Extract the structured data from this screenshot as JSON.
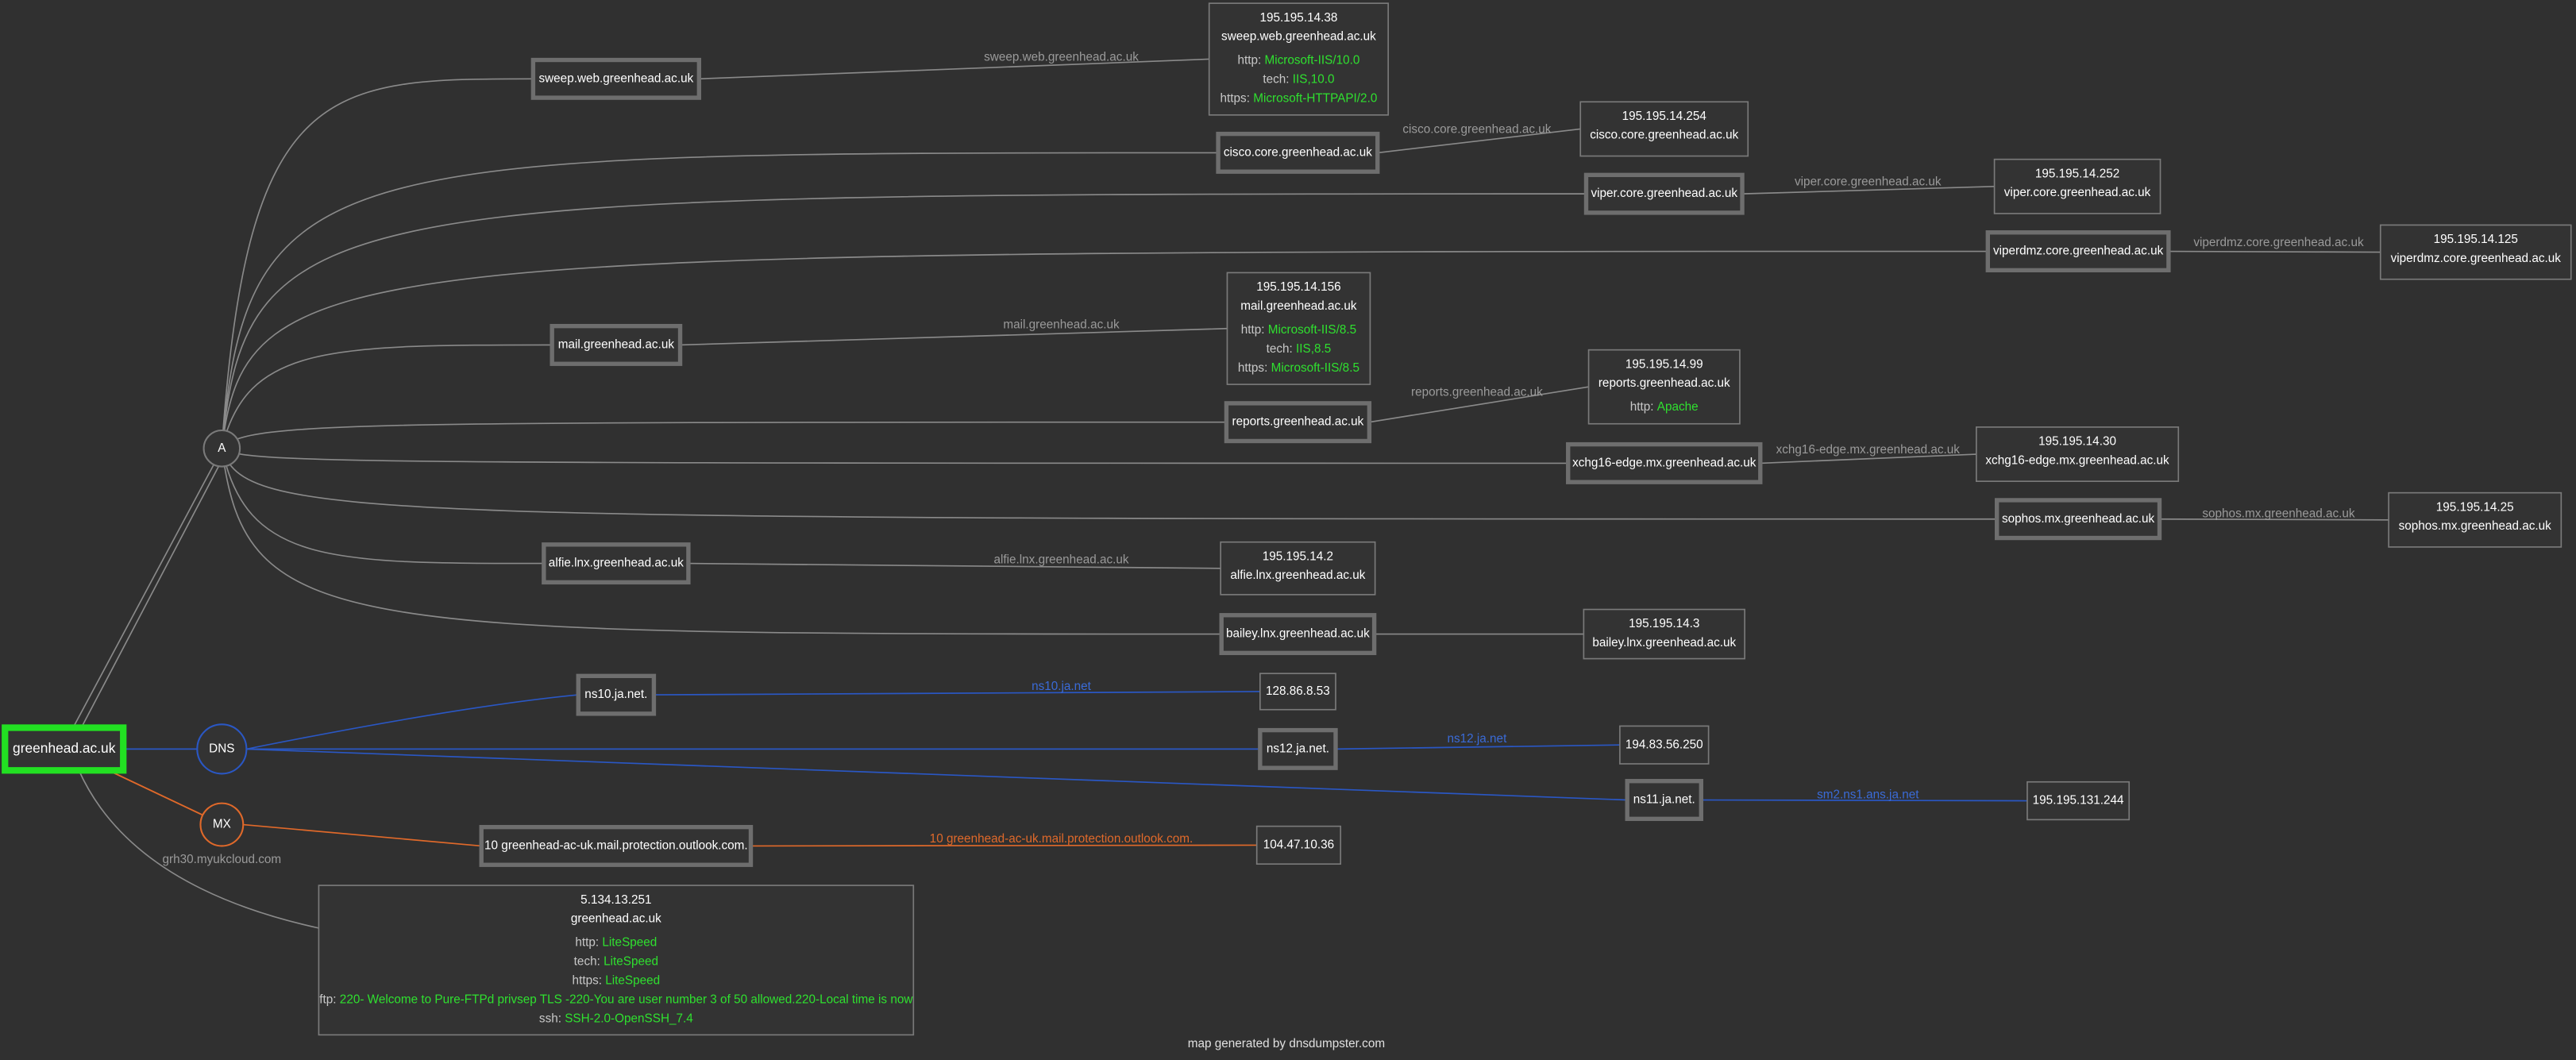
{
  "root": {
    "label": "greenhead.ac.uk"
  },
  "groups": [
    {
      "label": "A",
      "hosts": [
        {
          "label": "sweep.web.greenhead.ac.uk",
          "edge_label": "sweep.web.greenhead.ac.uk",
          "info": {
            "ip": "195.195.14.38",
            "hostname": "sweep.web.greenhead.ac.uk",
            "banners": [
              {
                "key": "http:",
                "value": "Microsoft-IIS/10.0"
              },
              {
                "key": "tech:",
                "value": "IIS,10.0"
              },
              {
                "key": "https:",
                "value": "Microsoft-HTTPAPI/2.0"
              }
            ]
          }
        },
        {
          "label": "cisco.core.greenhead.ac.uk",
          "edge_label": "cisco.core.greenhead.ac.uk",
          "info": {
            "ip": "195.195.14.254",
            "hostname": "cisco.core.greenhead.ac.uk"
          }
        },
        {
          "label": "viper.core.greenhead.ac.uk",
          "edge_label": "viper.core.greenhead.ac.uk",
          "info": {
            "ip": "195.195.14.252",
            "hostname": "viper.core.greenhead.ac.uk"
          }
        },
        {
          "label": "viperdmz.core.greenhead.ac.uk",
          "edge_label": "viperdmz.core.greenhead.ac.uk",
          "info": {
            "ip": "195.195.14.125",
            "hostname": "viperdmz.core.greenhead.ac.uk"
          }
        },
        {
          "label": "mail.greenhead.ac.uk",
          "edge_label": "mail.greenhead.ac.uk",
          "info": {
            "ip": "195.195.14.156",
            "hostname": "mail.greenhead.ac.uk",
            "banners": [
              {
                "key": "http:",
                "value": "Microsoft-IIS/8.5"
              },
              {
                "key": "tech:",
                "value": "IIS,8.5"
              },
              {
                "key": "https:",
                "value": "Microsoft-IIS/8.5"
              }
            ]
          }
        },
        {
          "label": "reports.greenhead.ac.uk",
          "edge_label": "reports.greenhead.ac.uk",
          "info": {
            "ip": "195.195.14.99",
            "hostname": "reports.greenhead.ac.uk",
            "banners": [
              {
                "key": "http:",
                "value": "Apache"
              }
            ]
          }
        },
        {
          "label": "xchg16-edge.mx.greenhead.ac.uk",
          "edge_label": "xchg16-edge.mx.greenhead.ac.uk",
          "info": {
            "ip": "195.195.14.30",
            "hostname": "xchg16-edge.mx.greenhead.ac.uk"
          }
        },
        {
          "label": "sophos.mx.greenhead.ac.uk",
          "edge_label": "sophos.mx.greenhead.ac.uk",
          "info": {
            "ip": "195.195.14.25",
            "hostname": "sophos.mx.greenhead.ac.uk"
          }
        },
        {
          "label": "alfie.lnx.greenhead.ac.uk",
          "edge_label": "alfie.lnx.greenhead.ac.uk",
          "info": {
            "ip": "195.195.14.2",
            "hostname": "alfie.lnx.greenhead.ac.uk"
          }
        },
        {
          "label": "bailey.lnx.greenhead.ac.uk",
          "info": {
            "ip": "195.195.14.3",
            "hostname": "bailey.lnx.greenhead.ac.uk"
          }
        }
      ]
    },
    {
      "label": "DNS",
      "hosts": [
        {
          "label": "ns10.ja.net.",
          "edge_label": "ns10.ja.net",
          "info": {
            "ip": "128.86.8.53"
          }
        },
        {
          "label": "ns12.ja.net.",
          "edge_label": "ns12.ja.net",
          "info": {
            "ip": "194.83.56.250"
          }
        },
        {
          "label": "ns11.ja.net.",
          "edge_label": "sm2.ns1.ans.ja.net",
          "info": {
            "ip": "195.195.131.244"
          }
        }
      ]
    },
    {
      "label": "MX",
      "hosts": [
        {
          "label": "10 greenhead-ac-uk.mail.protection.outlook.com.",
          "edge_label": "10 greenhead-ac-uk.mail.protection.outlook.com.",
          "info": {
            "ip": "104.47.10.36"
          }
        }
      ]
    }
  ],
  "root_edge_label": "grh30.myukcloud.com",
  "root_info": {
    "ip": "5.134.13.251",
    "hostname": "greenhead.ac.uk",
    "banners": [
      {
        "key": "http:",
        "value": "LiteSpeed"
      },
      {
        "key": "tech:",
        "value": "LiteSpeed"
      },
      {
        "key": "https:",
        "value": "LiteSpeed"
      },
      {
        "key": "ftp:",
        "value": "220- Welcome to Pure-FTPd privsep TLS -220-You are user number 3 of 50 allowed.220-Local time is now"
      },
      {
        "key": "ssh:",
        "value": "SSH-2.0-OpenSSH_7.4"
      }
    ]
  },
  "footer": "map generated by dnsdumpster.com"
}
